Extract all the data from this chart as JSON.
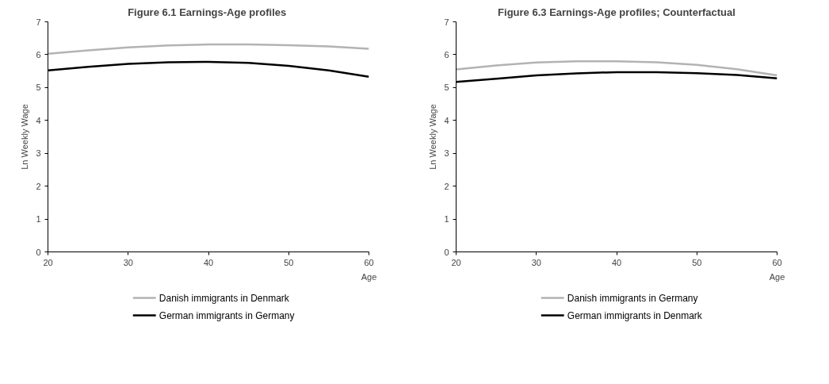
{
  "chart_data": [
    {
      "type": "line",
      "title": "Figure 6.1  Earnings-Age profiles",
      "xlabel": "Age",
      "ylabel": "Ln Weekly Wage",
      "x": [
        20,
        25,
        30,
        35,
        40,
        45,
        50,
        55,
        60
      ],
      "xlim": [
        20,
        60
      ],
      "xticks": [
        20,
        30,
        40,
        50,
        60
      ],
      "ylim": [
        0,
        7
      ],
      "yticks": [
        0,
        1,
        2,
        3,
        4,
        5,
        6,
        7
      ],
      "grid": false,
      "legend": "bottom",
      "marker": "none",
      "line_style": "solid",
      "series": [
        {
          "name": "Danish immigrants in Denmark",
          "color": "#b3b3b3",
          "values": [
            6.03,
            6.13,
            6.22,
            6.28,
            6.31,
            6.31,
            6.29,
            6.25,
            6.18
          ]
        },
        {
          "name": "German immigrants in Germany",
          "color": "#000000",
          "values": [
            5.52,
            5.63,
            5.72,
            5.77,
            5.78,
            5.75,
            5.66,
            5.52,
            5.33
          ]
        }
      ]
    },
    {
      "type": "line",
      "title": "Figure 6.3 Earnings-Age profiles; Counterfactual",
      "xlabel": "Age",
      "ylabel": "Ln Weekly Wage",
      "x": [
        20,
        25,
        30,
        35,
        40,
        45,
        50,
        55,
        60
      ],
      "xlim": [
        20,
        60
      ],
      "xticks": [
        20,
        30,
        40,
        50,
        60
      ],
      "ylim": [
        0,
        7
      ],
      "yticks": [
        0,
        1,
        2,
        3,
        4,
        5,
        6,
        7
      ],
      "grid": false,
      "legend": "bottom",
      "marker": "none",
      "line_style": "solid",
      "series": [
        {
          "name": "Danish immigrants in Germany",
          "color": "#b3b3b3",
          "values": [
            5.55,
            5.67,
            5.76,
            5.8,
            5.8,
            5.77,
            5.69,
            5.56,
            5.37
          ]
        },
        {
          "name": "German immigrants in Denmark",
          "color": "#000000",
          "values": [
            5.17,
            5.27,
            5.37,
            5.43,
            5.47,
            5.47,
            5.44,
            5.38,
            5.28
          ]
        }
      ]
    }
  ]
}
